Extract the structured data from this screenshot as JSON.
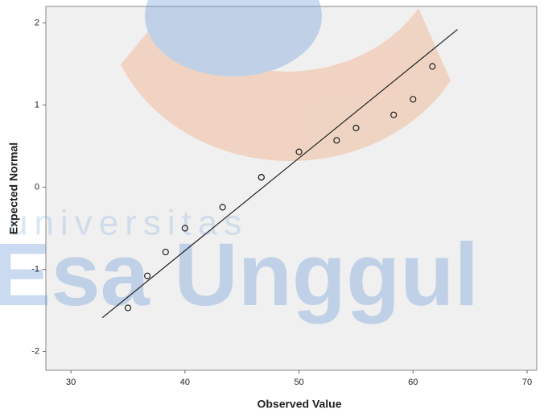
{
  "chart_data": {
    "type": "scatter",
    "x_label": "Observed Value",
    "y_label": "Expected Normal",
    "x": [
      35,
      36.7,
      38.3,
      40,
      43.3,
      46.7,
      46.7,
      50,
      53.3,
      55,
      58.3,
      60,
      61.7
    ],
    "values": [
      -1.47,
      -1.08,
      -0.79,
      -0.5,
      -0.245,
      0.12,
      0.12,
      0.43,
      0.57,
      0.72,
      0.88,
      1.07,
      1.47
    ],
    "color": "#222222",
    "reference_line": {
      "x": [
        32.75,
        63.9
      ],
      "y": [
        -1.59,
        1.92
      ]
    },
    "xlim": [
      27.8,
      70.85
    ],
    "ylim": [
      -2.23,
      2.2
    ],
    "xticks": [
      30,
      40,
      50,
      60,
      70
    ],
    "yticks": [
      -2,
      -1,
      0,
      1,
      2
    ]
  },
  "watermark": {
    "line1": "universitas",
    "line2": "Esa Unggul"
  }
}
